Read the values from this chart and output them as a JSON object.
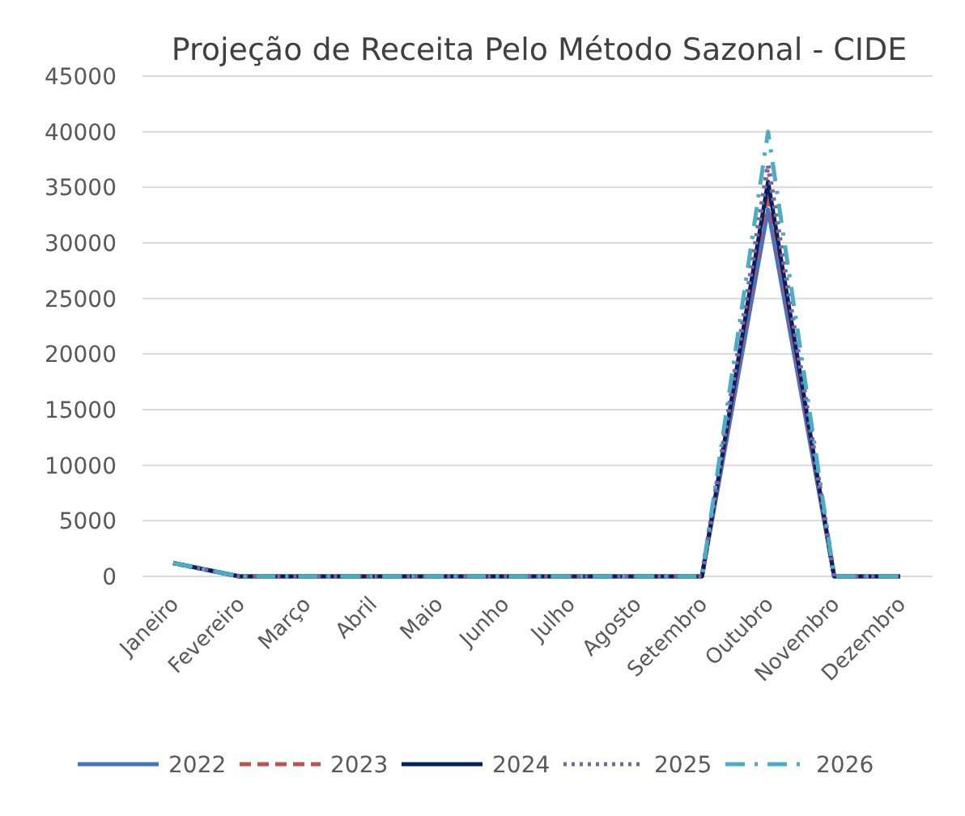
{
  "chart_data": {
    "type": "line",
    "title": "Projeção de Receita Pelo Método Sazonal - CIDE",
    "categories": [
      "Janeiro",
      "Fevereiro",
      "Março",
      "Abril",
      "Maio",
      "Junho",
      "Julho",
      "Agosto",
      "Setembro",
      "Outubro",
      "Novembro",
      "Dezembro"
    ],
    "series": [
      {
        "name": "2022",
        "color": "#4472c4",
        "line_style": "solid",
        "values": [
          1200,
          0,
          0,
          0,
          0,
          0,
          0,
          0,
          0,
          33000,
          0,
          0
        ]
      },
      {
        "name": "2023",
        "color": "#c0504d",
        "line_style": "dashed",
        "values": [
          null,
          null,
          null,
          null,
          null,
          null,
          null,
          null,
          0,
          34500,
          0,
          null
        ]
      },
      {
        "name": "2024",
        "color": "#002060",
        "line_style": "solid",
        "values": [
          1200,
          0,
          0,
          0,
          0,
          0,
          0,
          0,
          0,
          35500,
          0,
          0
        ]
      },
      {
        "name": "2025",
        "color": "#8064a2",
        "line_style": "dotted",
        "values": [
          1200,
          0,
          0,
          0,
          0,
          0,
          0,
          0,
          0,
          37000,
          0,
          0
        ]
      },
      {
        "name": "2026",
        "color": "#4bacc6",
        "line_style": "dashdot",
        "values": [
          1200,
          0,
          0,
          0,
          0,
          0,
          0,
          0,
          0,
          40000,
          0,
          0
        ]
      }
    ],
    "ylim": [
      0,
      45000
    ],
    "yticks": [
      0,
      5000,
      10000,
      15000,
      20000,
      25000,
      30000,
      35000,
      40000,
      45000
    ],
    "grid": "y",
    "legend": "bottom"
  }
}
